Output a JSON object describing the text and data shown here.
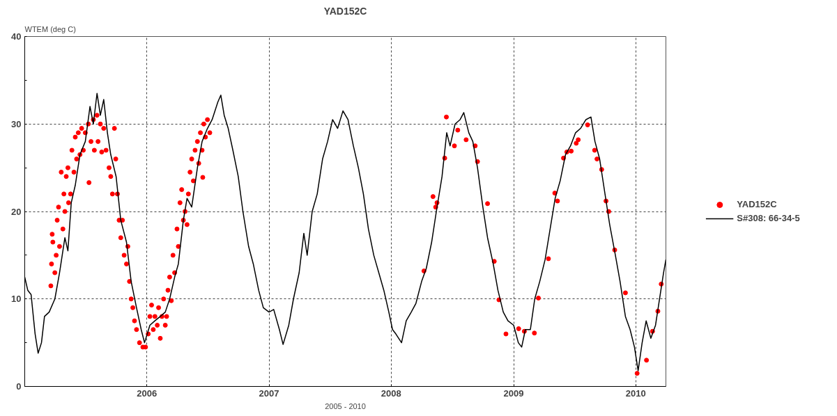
{
  "chart_data": {
    "type": "line",
    "title": "YAD152C",
    "ylabel": "WTEM (deg C)",
    "xlabel": "2005 - 2010",
    "xlim": [
      "2005-01-01",
      "2010-04-01"
    ],
    "xticks": [
      {
        "value": "2006-01-01",
        "label": "2006"
      },
      {
        "value": "2007-01-01",
        "label": "2007"
      },
      {
        "value": "2008-01-01",
        "label": "2008"
      },
      {
        "value": "2009-01-01",
        "label": "2009"
      },
      {
        "value": "2010-01-01",
        "label": "2010"
      }
    ],
    "ylim": [
      0,
      40
    ],
    "yticks": [
      0,
      {
        "value": 5,
        "label": null
      },
      10,
      {
        "value": 15,
        "label": null
      },
      20,
      {
        "value": 25,
        "label": null
      },
      30,
      {
        "value": 35,
        "label": null
      },
      40
    ],
    "grid": true,
    "legend": "right",
    "line_style": "solid",
    "series": [
      {
        "name": "YAD152C",
        "type": "scatter",
        "marker": "circle",
        "color": "#ff0000",
        "x": [
          "2005-03-20",
          "2005-03-22",
          "2005-03-24",
          "2005-03-26",
          "2005-04-01",
          "2005-04-05",
          "2005-04-08",
          "2005-04-12",
          "2005-04-15",
          "2005-04-20",
          "2005-04-25",
          "2005-04-28",
          "2005-05-01",
          "2005-05-05",
          "2005-05-10",
          "2005-05-12",
          "2005-05-18",
          "2005-05-22",
          "2005-05-28",
          "2005-06-01",
          "2005-06-05",
          "2005-06-10",
          "2005-06-15",
          "2005-06-20",
          "2005-06-25",
          "2005-07-01",
          "2005-07-10",
          "2005-07-12",
          "2005-07-18",
          "2005-07-25",
          "2005-07-28",
          "2005-08-05",
          "2005-08-08",
          "2005-08-15",
          "2005-08-19",
          "2005-08-25",
          "2005-09-01",
          "2005-09-10",
          "2005-09-15",
          "2005-09-20",
          "2005-09-26",
          "2005-09-30",
          "2005-10-05",
          "2005-10-10",
          "2005-10-15",
          "2005-10-20",
          "2005-10-25",
          "2005-11-01",
          "2005-11-05",
          "2005-11-10",
          "2005-11-15",
          "2005-11-20",
          "2005-11-25",
          "2005-12-01",
          "2005-12-10",
          "2005-12-20",
          "2005-12-28",
          "2006-01-05",
          "2006-01-10",
          "2006-01-15",
          "2006-01-20",
          "2006-01-25",
          "2006-02-01",
          "2006-02-05",
          "2006-02-10",
          "2006-02-15",
          "2006-02-20",
          "2006-02-25",
          "2006-03-01",
          "2006-03-05",
          "2006-03-10",
          "2006-03-15",
          "2006-03-20",
          "2006-03-25",
          "2006-04-01",
          "2006-04-05",
          "2006-04-10",
          "2006-04-15",
          "2006-04-20",
          "2006-04-25",
          "2006-05-01",
          "2006-05-05",
          "2006-05-10",
          "2006-05-15",
          "2006-05-20",
          "2006-05-25",
          "2006-06-01",
          "2006-06-05",
          "2006-06-10",
          "2006-06-15",
          "2006-06-17",
          "2006-06-20",
          "2006-06-25",
          "2006-07-01",
          "2006-07-08",
          "2008-04-08",
          "2008-05-05",
          "2008-05-13",
          "2008-05-17",
          "2008-06-09",
          "2008-06-14",
          "2008-07-08",
          "2008-07-18",
          "2008-08-12",
          "2008-09-08",
          "2008-09-15",
          "2008-10-15",
          "2008-11-04",
          "2008-11-18",
          "2008-12-09",
          "2009-01-16",
          "2009-02-02",
          "2009-03-04",
          "2009-03-16",
          "2009-04-15",
          "2009-05-04",
          "2009-05-12",
          "2009-05-30",
          "2009-06-09",
          "2009-06-22",
          "2009-07-07",
          "2009-07-13",
          "2009-08-10",
          "2009-08-31",
          "2009-09-07",
          "2009-09-21",
          "2009-10-04",
          "2009-10-12",
          "2009-10-30",
          "2009-12-01",
          "2010-01-05",
          "2010-02-02",
          "2010-02-20",
          "2010-03-08",
          "2010-03-18"
        ],
        "values": [
          11.5,
          14,
          17.4,
          16.5,
          13,
          15,
          19,
          20.5,
          16,
          24.5,
          18,
          22,
          20,
          24,
          25,
          21,
          22,
          27,
          24.5,
          28.5,
          26,
          29,
          26.5,
          29.5,
          27,
          29,
          30,
          23.3,
          28,
          30.5,
          27,
          31,
          28,
          30,
          26.8,
          29.5,
          27,
          25,
          24,
          22,
          29.5,
          26,
          22,
          19,
          17,
          19,
          15,
          14,
          16,
          12,
          10,
          9,
          7.5,
          6.5,
          5,
          4.5,
          4.5,
          6,
          8,
          9.3,
          6.5,
          8,
          7,
          9,
          5.5,
          8,
          10,
          7,
          8,
          11,
          12.5,
          9.8,
          15,
          13,
          18,
          16,
          21,
          22.5,
          19,
          20,
          18.5,
          22,
          24.5,
          26,
          23.5,
          27,
          28,
          25.5,
          29,
          27,
          23.9,
          30,
          28.5,
          30.5,
          29,
          13.2,
          21.7,
          20.5,
          21.0,
          26.1,
          30.8,
          27.5,
          29.3,
          28.2,
          27.5,
          25.7,
          20.9,
          14.3,
          9.9,
          6.0,
          6.6,
          6.3,
          6.1,
          10.1,
          14.6,
          22.1,
          21.2,
          26.1,
          26.8,
          26.9,
          27.8,
          28.2,
          29.9,
          27.0,
          26.0,
          24.8,
          21.2,
          20.0,
          15.6,
          10.7,
          1.5,
          3.0,
          6.3,
          8.6,
          11.7
        ]
      },
      {
        "name": "S#308: 66-34-5",
        "type": "line",
        "color": "#000000",
        "x": [
          "2005-01-01",
          "2005-01-10",
          "2005-01-20",
          "2005-02-01",
          "2005-02-10",
          "2005-02-20",
          "2005-03-01",
          "2005-03-15",
          "2005-04-01",
          "2005-04-15",
          "2005-05-01",
          "2005-05-10",
          "2005-05-20",
          "2005-06-01",
          "2005-06-15",
          "2005-07-01",
          "2005-07-15",
          "2005-07-25",
          "2005-08-05",
          "2005-08-15",
          "2005-08-25",
          "2005-09-05",
          "2005-09-15",
          "2005-10-01",
          "2005-10-15",
          "2005-11-01",
          "2005-11-15",
          "2005-12-01",
          "2005-12-15",
          "2005-12-25",
          "2006-01-10",
          "2006-01-25",
          "2006-02-10",
          "2006-02-25",
          "2006-03-10",
          "2006-03-25",
          "2006-04-05",
          "2006-04-20",
          "2006-05-01",
          "2006-05-15",
          "2006-06-01",
          "2006-06-15",
          "2006-07-01",
          "2006-07-15",
          "2006-08-01",
          "2006-08-10",
          "2006-08-20",
          "2006-09-01",
          "2006-09-15",
          "2006-10-01",
          "2006-10-15",
          "2006-11-01",
          "2006-11-15",
          "2006-12-01",
          "2006-12-15",
          "2007-01-01",
          "2007-01-15",
          "2007-02-01",
          "2007-02-12",
          "2007-03-01",
          "2007-03-15",
          "2007-04-01",
          "2007-04-15",
          "2007-04-25",
          "2007-05-10",
          "2007-05-25",
          "2007-06-10",
          "2007-06-25",
          "2007-07-10",
          "2007-07-25",
          "2007-08-10",
          "2007-08-25",
          "2007-09-10",
          "2007-09-25",
          "2007-10-10",
          "2007-10-25",
          "2007-11-10",
          "2007-11-25",
          "2007-12-10",
          "2007-12-25",
          "2008-01-05",
          "2008-01-15",
          "2008-02-01",
          "2008-02-15",
          "2008-03-01",
          "2008-03-15",
          "2008-04-01",
          "2008-04-15",
          "2008-05-01",
          "2008-05-15",
          "2008-06-01",
          "2008-06-15",
          "2008-06-25",
          "2008-07-10",
          "2008-07-25",
          "2008-08-05",
          "2008-08-20",
          "2008-09-01",
          "2008-09-15",
          "2008-10-01",
          "2008-10-15",
          "2008-11-01",
          "2008-11-15",
          "2008-12-01",
          "2008-12-15",
          "2009-01-01",
          "2009-01-15",
          "2009-01-25",
          "2009-02-05",
          "2009-02-20",
          "2009-03-05",
          "2009-03-20",
          "2009-04-05",
          "2009-04-20",
          "2009-05-05",
          "2009-05-20",
          "2009-06-05",
          "2009-06-20",
          "2009-07-05",
          "2009-07-20",
          "2009-08-05",
          "2009-08-20",
          "2009-09-01",
          "2009-09-15",
          "2009-10-01",
          "2009-10-15",
          "2009-11-01",
          "2009-11-15",
          "2009-12-01",
          "2009-12-15",
          "2009-12-28",
          "2010-01-08",
          "2010-01-20",
          "2010-02-01",
          "2010-02-15",
          "2010-03-01",
          "2010-03-15",
          "2010-03-25",
          "2010-04-01"
        ],
        "values": [
          12.5,
          11,
          10.5,
          6,
          3.8,
          5,
          8,
          8.5,
          10,
          13,
          17,
          15.5,
          21,
          23,
          26.5,
          28,
          32,
          30,
          33.5,
          31,
          32.8,
          29,
          26.5,
          24,
          19,
          16.5,
          12,
          9,
          6.5,
          5,
          7,
          7.5,
          8,
          8.5,
          10,
          12.5,
          14,
          19,
          21.5,
          20.5,
          25,
          28,
          29.5,
          30.5,
          32.5,
          33.3,
          31,
          29.5,
          27,
          24,
          20,
          16,
          14,
          11,
          9,
          8.5,
          8.8,
          6.5,
          4.8,
          7,
          10,
          13,
          17.5,
          15,
          20,
          22,
          26,
          28,
          30.5,
          29.5,
          31.5,
          30.5,
          27.5,
          25,
          22,
          18,
          15,
          13,
          11,
          8.5,
          6.5,
          6,
          5,
          7.5,
          8.5,
          9.5,
          12,
          13.5,
          16.5,
          20,
          24,
          29,
          27.5,
          30,
          30.5,
          31.3,
          29,
          28,
          25,
          20.5,
          17,
          14,
          11,
          8.5,
          7.5,
          7,
          5,
          4.5,
          6.5,
          6.5,
          10,
          12,
          14.5,
          18,
          21.5,
          23.5,
          26.5,
          27.5,
          29,
          29.5,
          30.5,
          30.8,
          28,
          26,
          22,
          18.5,
          15,
          12,
          8,
          6.5,
          4.5,
          1.8,
          5,
          7.5,
          5.5,
          7,
          10.5,
          13,
          14.5
        ]
      }
    ]
  }
}
